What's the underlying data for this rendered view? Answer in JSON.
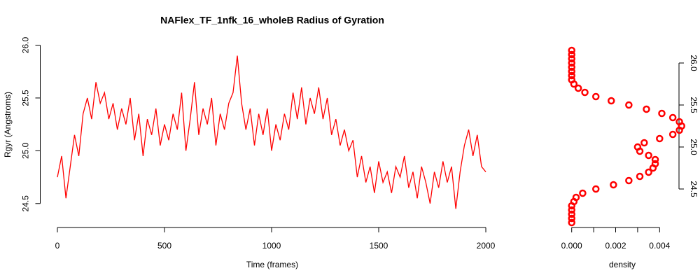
{
  "chart_data": [
    {
      "type": "line",
      "title": "NAFlex_TF_1nfk_16_wholeB Radius of Gyration",
      "x_label": "Time (frames)",
      "y_label": "Rgyr (Angstroms)",
      "color": "#ff0000",
      "x": [
        0,
        20,
        40,
        60,
        80,
        100,
        120,
        140,
        160,
        180,
        200,
        220,
        240,
        260,
        280,
        300,
        320,
        340,
        360,
        380,
        400,
        420,
        440,
        460,
        480,
        500,
        520,
        540,
        560,
        580,
        600,
        620,
        640,
        660,
        680,
        700,
        720,
        740,
        760,
        780,
        800,
        820,
        840,
        860,
        880,
        900,
        920,
        940,
        960,
        980,
        1000,
        1020,
        1040,
        1060,
        1080,
        1100,
        1120,
        1140,
        1160,
        1180,
        1200,
        1220,
        1240,
        1260,
        1280,
        1300,
        1320,
        1340,
        1360,
        1380,
        1400,
        1420,
        1440,
        1460,
        1480,
        1500,
        1520,
        1540,
        1560,
        1580,
        1600,
        1620,
        1640,
        1660,
        1680,
        1700,
        1720,
        1740,
        1760,
        1780,
        1800,
        1820,
        1840,
        1860,
        1880,
        1900,
        1920,
        1940,
        1960,
        1980,
        2000
      ],
      "values": [
        24.75,
        24.95,
        24.55,
        24.85,
        25.15,
        24.95,
        25.35,
        25.5,
        25.3,
        25.65,
        25.45,
        25.55,
        25.3,
        25.45,
        25.2,
        25.4,
        25.25,
        25.5,
        25.1,
        25.35,
        24.95,
        25.3,
        25.15,
        25.4,
        25.05,
        25.25,
        25.1,
        25.35,
        25.2,
        25.55,
        25.0,
        25.3,
        25.65,
        25.15,
        25.4,
        25.25,
        25.5,
        25.05,
        25.35,
        25.2,
        25.45,
        25.55,
        25.9,
        25.45,
        25.2,
        25.4,
        25.05,
        25.35,
        25.15,
        25.4,
        25.0,
        25.25,
        25.1,
        25.35,
        25.2,
        25.55,
        25.3,
        25.6,
        25.25,
        25.5,
        25.35,
        25.6,
        25.3,
        25.5,
        25.15,
        25.3,
        25.05,
        25.2,
        25.0,
        25.1,
        24.75,
        24.95,
        24.7,
        24.85,
        24.6,
        24.9,
        24.7,
        24.8,
        24.6,
        24.85,
        24.75,
        24.95,
        24.65,
        24.8,
        24.55,
        24.85,
        24.7,
        24.5,
        24.8,
        24.65,
        24.9,
        24.7,
        24.85,
        24.45,
        24.8,
        25.05,
        25.2,
        24.95,
        25.15,
        24.85,
        24.8
      ],
      "xlim": [
        -80,
        2080
      ],
      "ylim": [
        24.24,
        26.05
      ],
      "xticks": [
        0,
        500,
        1000,
        1500,
        2000
      ],
      "yticks": [
        {
          "value": 24.5,
          "label": "24.5"
        },
        {
          "value": 25,
          "label": "25.0"
        },
        {
          "value": 25.5,
          "label": "25.5"
        },
        {
          "value": 26,
          "label": "26.0"
        }
      ]
    },
    {
      "type": "scatter",
      "x_label": "density",
      "color": "#ff0000",
      "x": [
        0,
        0,
        0,
        0,
        0,
        0.0001,
        0.0002,
        0.0005,
        0.0011,
        0.0019,
        0.0026,
        0.0031,
        0.0035,
        0.0037,
        0.0038,
        0.0038,
        0.0035,
        0.0031,
        0.003,
        0.0033,
        0.004,
        0.0046,
        0.0049,
        0.005,
        0.0049,
        0.0046,
        0.0041,
        0.0034,
        0.0026,
        0.0018,
        0.0011,
        0.0006,
        0.0003,
        0.0001,
        0,
        0,
        0,
        0,
        0,
        0,
        0,
        0
      ],
      "y": [
        24.1,
        24.15,
        24.2,
        24.25,
        24.3,
        24.35,
        24.4,
        24.45,
        24.5,
        24.55,
        24.6,
        24.65,
        24.7,
        24.75,
        24.8,
        24.85,
        24.9,
        24.95,
        25.0,
        25.05,
        25.1,
        25.15,
        25.2,
        25.25,
        25.3,
        25.35,
        25.4,
        25.45,
        25.5,
        25.55,
        25.6,
        25.65,
        25.7,
        25.75,
        25.8,
        25.85,
        25.9,
        25.95,
        26.0,
        26.05,
        26.1,
        26.15
      ],
      "xlim": [
        -0.0005,
        0.0052
      ],
      "ylim": [
        24.0,
        26.275
      ],
      "xticks": [
        {
          "value": 0,
          "label": "0.000"
        },
        {
          "value": 0.001,
          "label": null
        },
        {
          "value": 0.002,
          "label": "0.002"
        },
        {
          "value": 0.003,
          "label": null
        },
        {
          "value": 0.004,
          "label": "0.004"
        }
      ],
      "yticks": [
        {
          "value": 24.5,
          "label": "24.5"
        },
        {
          "value": 25,
          "label": "25.0"
        },
        {
          "value": 25.5,
          "label": "25.5"
        },
        {
          "value": 26,
          "label": "26.0"
        }
      ]
    }
  ]
}
